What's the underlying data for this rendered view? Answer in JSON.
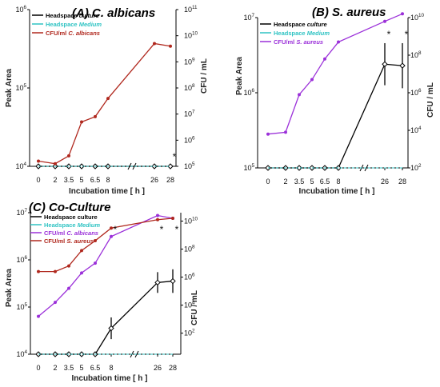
{
  "chart_data": [
    {
      "type": "line",
      "title": "(A) C. albicans",
      "xlabel": "Incubation time [ h ]",
      "ylabel_left": "Peak Area",
      "ylabel_right": "CFU / mL",
      "x_categories": [
        "0",
        "2",
        "3.5",
        "5",
        "6.5",
        "8",
        "26",
        "28"
      ],
      "left_axis": {
        "scale": "log",
        "ylim_exp": [
          4,
          6
        ],
        "tick_exponents": [
          4,
          5,
          6
        ]
      },
      "right_axis": {
        "scale": "log",
        "ylim_exp": [
          5,
          11
        ],
        "tick_exponents": [
          5,
          6,
          7,
          8,
          9,
          10,
          11
        ]
      },
      "legend": [
        {
          "label": "Headspace",
          "label_it": "culture",
          "color": "#000000"
        },
        {
          "label": "Headspace",
          "label_it": "Medium",
          "color": "#2fc3c3"
        },
        {
          "label": "CFU/ml",
          "label_it": "C. albicans",
          "color": "#b0281e"
        }
      ],
      "series": [
        {
          "axis": "left",
          "color": "#000000",
          "style": "solid",
          "marker": "diamond",
          "values": [
            4.0,
            4.0,
            4.0,
            4.0,
            4.0,
            4.0,
            4.0,
            4.0
          ]
        },
        {
          "axis": "left",
          "color": "#2fc3c3",
          "style": "dashed",
          "marker": "none",
          "values": [
            4.0,
            4.0,
            4.0,
            4.0,
            4.0,
            4.0,
            4.0,
            4.0
          ]
        },
        {
          "axis": "right",
          "color": "#b0281e",
          "style": "solid",
          "marker": "circle",
          "values": [
            5.2,
            5.1,
            5.4,
            6.7,
            6.9,
            7.6,
            9.7,
            9.6
          ]
        }
      ],
      "significance": [
        {
          "x_index": 7,
          "text": "*"
        }
      ]
    },
    {
      "type": "line",
      "title": "(B)  S. aureus",
      "xlabel": "Incubation time  [ h ]",
      "ylabel_left": "Peak Area",
      "ylabel_right": "CFU / mL",
      "x_categories": [
        "0",
        "2",
        "3.5",
        "5",
        "6.5",
        "8",
        "26",
        "28"
      ],
      "left_axis": {
        "scale": "log",
        "ylim_exp": [
          5,
          7
        ],
        "tick_exponents": [
          5,
          6,
          7
        ]
      },
      "right_axis": {
        "scale": "log",
        "ylim_exp": [
          2,
          10
        ],
        "tick_exponents": [
          2,
          4,
          6,
          8,
          10
        ]
      },
      "legend": [
        {
          "label": "Headspace",
          "label_it": "culture",
          "color": "#000000"
        },
        {
          "label": "Headspace",
          "label_it": "Medium",
          "color": "#2fc3c3"
        },
        {
          "label": "CFU/ml",
          "label_it": "S. aureus",
          "color": "#9b30d9"
        }
      ],
      "series": [
        {
          "axis": "left",
          "color": "#000000",
          "style": "solid",
          "marker": "diamond",
          "values": [
            5.0,
            5.0,
            5.0,
            5.0,
            5.0,
            5.0,
            6.38,
            6.36
          ],
          "error": [
            0,
            0,
            0,
            0,
            0,
            0,
            0.28,
            0.3
          ]
        },
        {
          "axis": "left",
          "color": "#2fc3c3",
          "style": "dashed",
          "marker": "none",
          "values": [
            5.0,
            5.0,
            5.0,
            5.0,
            5.0,
            5.0,
            5.0,
            5.0
          ]
        },
        {
          "axis": "right",
          "color": "#9b30d9",
          "style": "solid",
          "marker": "circle",
          "values": [
            3.8,
            3.9,
            5.9,
            6.7,
            7.8,
            8.7,
            9.8,
            10.2
          ]
        }
      ],
      "significance": [
        {
          "x_index": 6,
          "text": "*"
        },
        {
          "x_index": 7,
          "text": "*"
        }
      ]
    },
    {
      "type": "line",
      "title": "(C) Co-Culture",
      "xlabel": "Incubation time  [ h ]",
      "ylabel_left": "Peak Area",
      "ylabel_right": "CFU / mL",
      "x_categories": [
        "0",
        "2",
        "3.5",
        "5",
        "6.5",
        "8",
        "26",
        "28"
      ],
      "left_axis": {
        "scale": "log",
        "ylim_exp": [
          4,
          7
        ],
        "tick_exponents": [
          4,
          5,
          6,
          7
        ]
      },
      "right_axis": {
        "scale": "log",
        "ylim_exp": [
          0.5,
          10.6
        ],
        "tick_exponents": [
          2,
          4,
          6,
          8,
          10
        ]
      },
      "legend": [
        {
          "label": "Headspace culture",
          "label_it": "",
          "color": "#000000"
        },
        {
          "label": "Headspace",
          "label_it": "Medium",
          "color": "#2fc3c3"
        },
        {
          "label": "CFU/ml",
          "label_it": "C. albicans",
          "color": "#9b30d9"
        },
        {
          "label": "CFU/ml",
          "label_it": "S. aureus",
          "color": "#b0281e"
        }
      ],
      "series": [
        {
          "axis": "left",
          "color": "#000000",
          "style": "solid",
          "marker": "diamond",
          "values": [
            4.0,
            4.0,
            4.0,
            4.0,
            4.0,
            4.55,
            5.52,
            5.55
          ],
          "error": [
            0,
            0,
            0,
            0,
            0,
            0.23,
            0.22,
            0.25
          ]
        },
        {
          "axis": "left",
          "color": "#2fc3c3",
          "style": "dashed",
          "marker": "none",
          "values": [
            4.0,
            4.0,
            4.0,
            4.0,
            4.0,
            4.0,
            4.0,
            4.0
          ]
        },
        {
          "axis": "right",
          "color": "#9b30d9",
          "style": "solid",
          "marker": "circle",
          "values": [
            3.2,
            4.2,
            5.2,
            6.3,
            7.0,
            8.9,
            10.4,
            10.2
          ]
        },
        {
          "axis": "right",
          "color": "#b0281e",
          "style": "solid",
          "marker": "circle",
          "values": [
            6.4,
            6.4,
            6.8,
            7.9,
            8.6,
            9.5,
            10.1,
            10.2
          ]
        }
      ],
      "significance": [
        {
          "x_index": 5,
          "text": "*"
        },
        {
          "x_index": 6,
          "text": "*"
        },
        {
          "x_index": 7,
          "text": "*"
        }
      ]
    }
  ]
}
